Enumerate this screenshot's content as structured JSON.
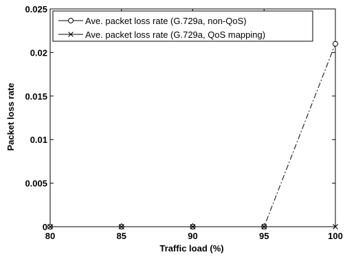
{
  "chart_data": {
    "type": "line",
    "xlabel": "Traffic load (%)",
    "ylabel": "Packet loss rate",
    "xlim": [
      80,
      100
    ],
    "ylim": [
      0,
      0.025
    ],
    "x": [
      80,
      85,
      90,
      95,
      100
    ],
    "x_ticks": [
      "80",
      "85",
      "90",
      "95",
      "100"
    ],
    "y_ticks": [
      "0",
      "0.005",
      "0.01",
      "0.015",
      "0.02",
      "0.025"
    ],
    "grid": false,
    "legend_position": "top-left",
    "series": [
      {
        "name": "Ave. packet loss rate (G.729a, non-QoS)",
        "values": [
          0,
          0,
          0,
          0,
          0.021
        ],
        "marker": "circle",
        "line_style": "dashdot",
        "color": "#000000"
      },
      {
        "name": "Ave. packet loss rate (G.729a, QoS mapping)",
        "values": [
          0,
          0,
          0,
          0,
          0
        ],
        "marker": "x",
        "line_style": "solid",
        "color": "#000000"
      }
    ]
  }
}
